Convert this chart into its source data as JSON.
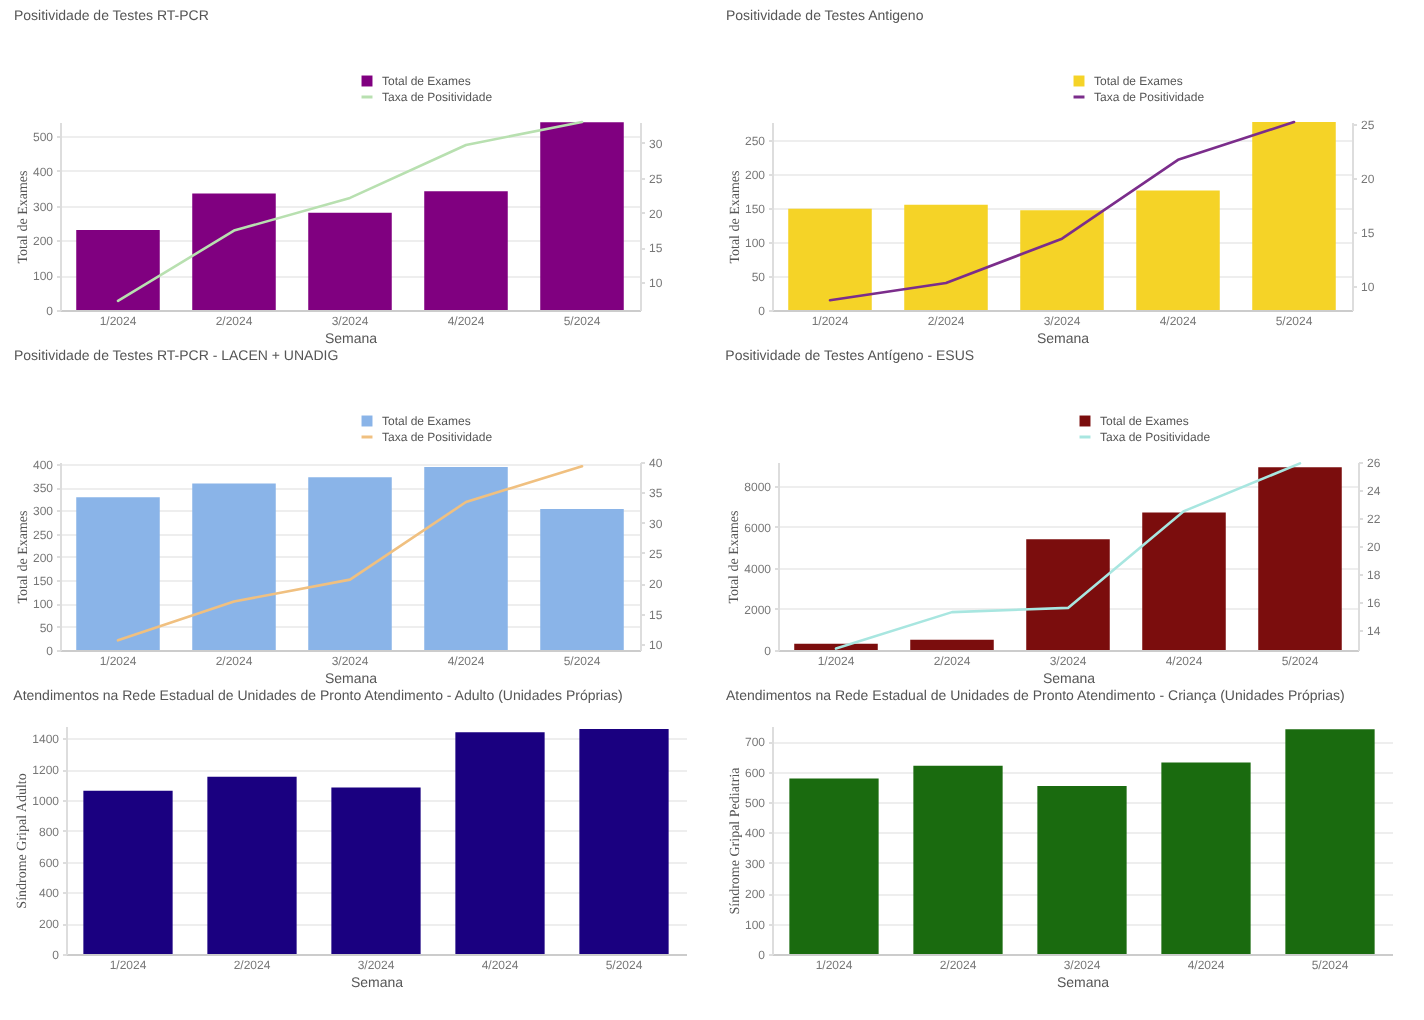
{
  "chart_data": [
    {
      "type": "bar",
      "title": "Positividade de Testes RT-PCR",
      "xlabel": "Semana",
      "ylabel": "Total de Exames",
      "categories": [
        "1/2024",
        "2/2024",
        "3/2024",
        "4/2024",
        "5/2024"
      ],
      "series": [
        {
          "name": "Total de Exames",
          "color": "#800080",
          "values": [
            230,
            335,
            280,
            342,
            540
          ]
        },
        {
          "name": "Taxa de Positividade",
          "type": "line",
          "axis": "y2",
          "color": "#b8e0b0",
          "values": [
            7.3,
            17.4,
            22.1,
            29.7,
            33
          ]
        }
      ],
      "ylim": [
        0,
        541
      ],
      "yticks": [
        0,
        100,
        200,
        300,
        400,
        500
      ],
      "y2lim": [
        6,
        33
      ],
      "y2ticks": [
        10,
        15,
        20,
        25,
        30
      ],
      "grid": "y",
      "legend": "top right"
    },
    {
      "type": "bar",
      "title": "Positividade de Testes Antigeno",
      "xlabel": "Semana",
      "ylabel": "Total de Exames",
      "categories": [
        "1/2024",
        "2/2024",
        "3/2024",
        "4/2024",
        "5/2024"
      ],
      "series": [
        {
          "name": "Total de Exames",
          "color": "#f5d327",
          "values": [
            149,
            155,
            147,
            176,
            277
          ]
        },
        {
          "name": "Taxa de Positividade",
          "type": "line",
          "axis": "y2",
          "color": "#7b2d8b",
          "values": [
            8.7,
            10.3,
            14.4,
            21.7,
            25.2
          ]
        }
      ],
      "ylim": [
        0,
        277
      ],
      "yticks": [
        0,
        50,
        100,
        150,
        200,
        250
      ],
      "y2lim": [
        7.8,
        25.2
      ],
      "y2ticks": [
        10,
        15,
        20,
        25
      ],
      "grid": "y",
      "legend": "top right"
    },
    {
      "type": "bar",
      "title": "Positividade de Testes RT-PCR - LACEN + UNADIG",
      "xlabel": "Semana",
      "ylabel": "Total de Exames",
      "categories": [
        "1/2024",
        "2/2024",
        "3/2024",
        "4/2024",
        "5/2024"
      ],
      "series": [
        {
          "name": "Total de Exames",
          "color": "#8ab4e8",
          "values": [
            328,
            358,
            371,
            393,
            303
          ]
        },
        {
          "name": "Taxa de Positividade",
          "type": "line",
          "axis": "y2",
          "color": "#f0c080",
          "values": [
            10.6,
            17,
            20.6,
            33.4,
            39.3
          ]
        }
      ],
      "ylim": [
        0,
        404
      ],
      "yticks": [
        0,
        50,
        100,
        150,
        200,
        250,
        300,
        350,
        400
      ],
      "y2lim": [
        9,
        40
      ],
      "y2ticks": [
        10,
        15,
        20,
        25,
        30,
        35,
        40
      ],
      "grid": "y",
      "legend": "top right"
    },
    {
      "type": "bar",
      "title": "Positividade de Testes Antígeno - ESUS",
      "xlabel": "Semana",
      "ylabel": "Total de Exames",
      "categories": [
        "1/2024",
        "2/2024",
        "3/2024",
        "4/2024",
        "5/2024"
      ],
      "series": [
        {
          "name": "Total de Exames",
          "color": "#7b0d0d",
          "values": [
            300,
            500,
            5400,
            6700,
            8900
          ]
        },
        {
          "name": "Taxa de Positividade",
          "type": "line",
          "axis": "y2",
          "color": "#a8e6e0",
          "values": [
            12.7,
            15.3,
            15.6,
            22.5,
            25.9
          ]
        }
      ],
      "ylim": [
        0,
        9160
      ],
      "yticks": [
        0,
        {
          "value": 2000,
          "label": "2000"
        },
        {
          "value": 4000,
          "label": "4000"
        },
        {
          "value": 6000,
          "label": "6000"
        },
        {
          "value": 8000,
          "label": "8000"
        }
      ],
      "y2lim": [
        12.6,
        26
      ],
      "y2ticks": [
        14,
        16,
        18,
        20,
        22,
        24,
        26
      ],
      "grid": "y",
      "legend": "top right"
    },
    {
      "type": "bar",
      "title": "Atendimentos na Rede Estadual de Unidades de Pronto Atendimento - Adulto (Unidades Próprias)",
      "xlabel": "Semana",
      "ylabel": "Síndrome Gripal Adulto",
      "categories": [
        "1/2024",
        "2/2024",
        "3/2024",
        "4/2024",
        "5/2024"
      ],
      "color": "#1a0080",
      "values": [
        1060,
        1150,
        1080,
        1440,
        1460
      ],
      "ylim": [
        0,
        1480
      ],
      "yticks": [
        0,
        200,
        400,
        600,
        800,
        {
          "value": 1000,
          "label": "1000"
        },
        {
          "value": 1200,
          "label": "1200"
        },
        {
          "value": 1400,
          "label": "1400"
        }
      ],
      "grid": "y"
    },
    {
      "type": "bar",
      "title": "Atendimentos na Rede Estadual de Unidades de Pronto Atendimento - Criança (Unidades Próprias)",
      "xlabel": "Semana",
      "ylabel": "Síndrome Gripal Pediatria",
      "categories": [
        "1/2024",
        "2/2024",
        "3/2024",
        "4/2024",
        "5/2024"
      ],
      "color": "#1a6b0f",
      "values": [
        577,
        619,
        553,
        630,
        739
      ],
      "ylim": [
        0,
        750
      ],
      "yticks": [
        0,
        100,
        200,
        300,
        400,
        500,
        600,
        700
      ],
      "grid": "y"
    }
  ]
}
